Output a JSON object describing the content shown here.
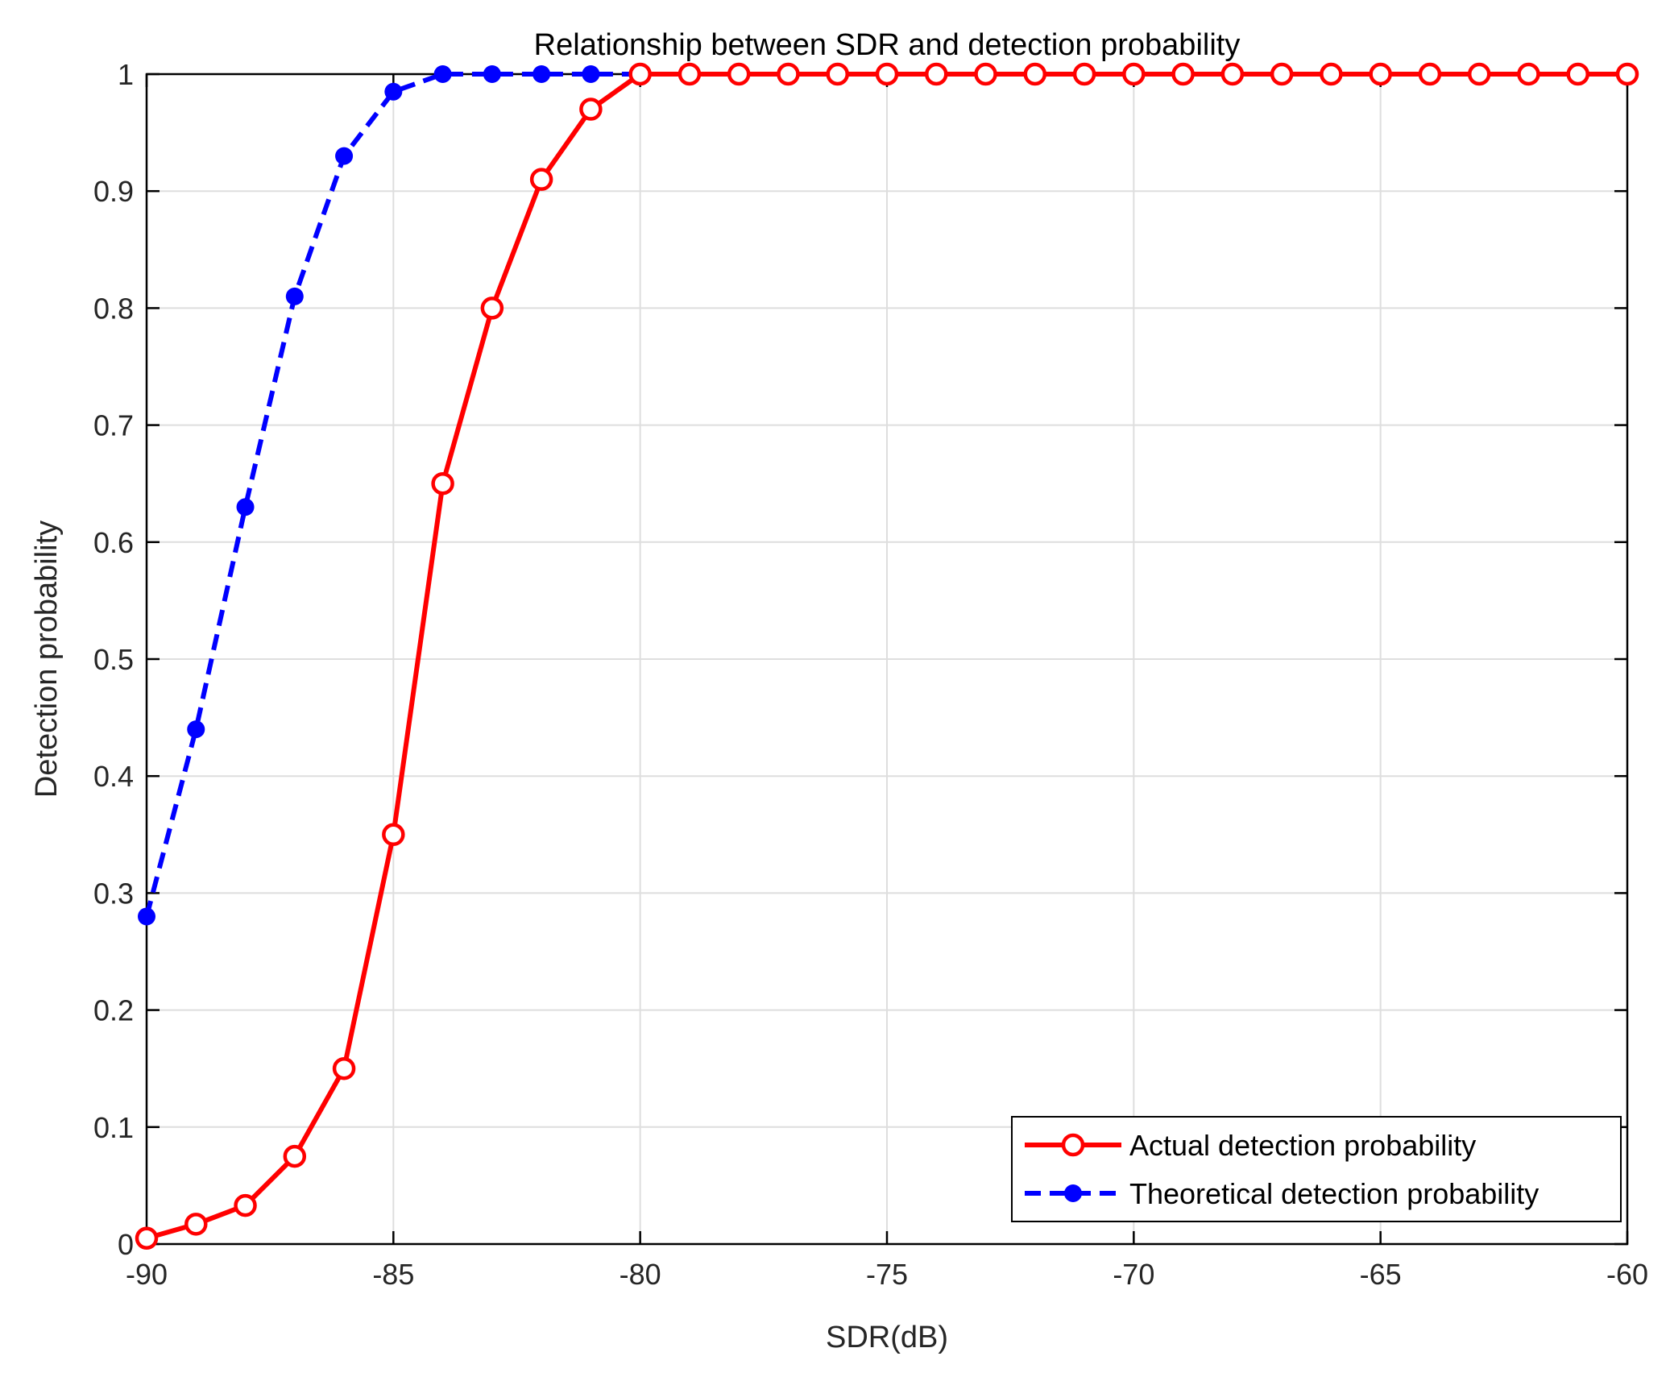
{
  "chart_data": {
    "type": "line",
    "title": "Relationship between SDR and detection probability",
    "xlabel": "SDR(dB)",
    "ylabel": "Detection probability",
    "xlim": [
      -90,
      -60
    ],
    "ylim": [
      0,
      1
    ],
    "x_ticks": [
      -90,
      -85,
      -80,
      -75,
      -70,
      -65,
      -60
    ],
    "x_tick_labels": [
      "-90",
      "-85",
      "-80",
      "-75",
      "-70",
      "-65",
      "-60"
    ],
    "y_ticks": [
      0,
      0.1,
      0.2,
      0.3,
      0.4,
      0.5,
      0.6,
      0.7,
      0.8,
      0.9,
      1
    ],
    "y_tick_labels": [
      "0",
      "0.1",
      "0.2",
      "0.3",
      "0.4",
      "0.5",
      "0.6",
      "0.7",
      "0.8",
      "0.9",
      "1"
    ],
    "grid": true,
    "legend_position": "bottom-right",
    "x": [
      -90,
      -89,
      -88,
      -87,
      -86,
      -85,
      -84,
      -83,
      -82,
      -81,
      -80,
      -79,
      -78,
      -77,
      -76,
      -75,
      -74,
      -73,
      -72,
      -71,
      -70,
      -69,
      -68,
      -67,
      -66,
      -65,
      -64,
      -63,
      -62,
      -61,
      -60
    ],
    "series": [
      {
        "name": "Actual detection probability",
        "color": "#ff0000",
        "line_style": "solid",
        "marker": "open-circle",
        "values": [
          0.005,
          0.017,
          0.033,
          0.075,
          0.15,
          0.35,
          0.65,
          0.8,
          0.91,
          0.97,
          1,
          1,
          1,
          1,
          1,
          1,
          1,
          1,
          1,
          1,
          1,
          1,
          1,
          1,
          1,
          1,
          1,
          1,
          1,
          1,
          1
        ]
      },
      {
        "name": "Theoretical detection probability",
        "color": "#0000ff",
        "line_style": "dashed",
        "marker": "filled-dot",
        "values": [
          0.28,
          0.44,
          0.63,
          0.81,
          0.93,
          0.985,
          1,
          1,
          1,
          1,
          1,
          1,
          1,
          1,
          1,
          1,
          1,
          1,
          1,
          1,
          1,
          1,
          1,
          1,
          1,
          1,
          1,
          1,
          1,
          1,
          1
        ]
      }
    ]
  }
}
